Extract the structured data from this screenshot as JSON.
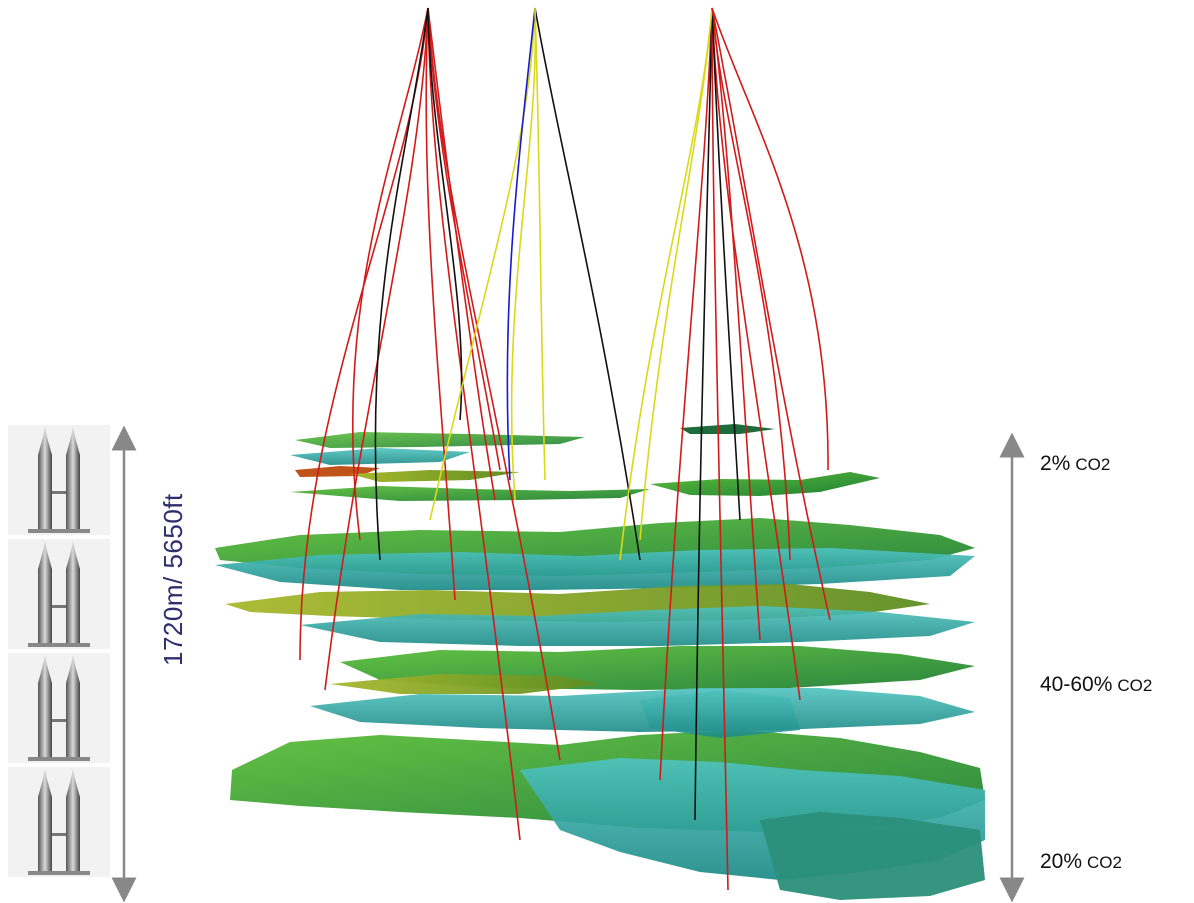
{
  "depth_label": "1720m/ 5650ft",
  "co2_levels": {
    "top": {
      "percent": "2%",
      "gas": "CO2"
    },
    "middle": {
      "percent": "40-60%",
      "gas": "CO2"
    },
    "bottom": {
      "percent": "20%",
      "gas": "CO2"
    }
  },
  "colors": {
    "well_red": "#d21a1a",
    "well_black": "#111111",
    "well_yellow": "#d9d91a",
    "well_blue": "#1a1ad0",
    "horizon_green": "#2f9a3c",
    "horizon_teal": "#2aa3a0",
    "horizon_olive": "#8ca021",
    "horizon_orange": "#c0531a",
    "arrow_gray": "#888888"
  },
  "icons": [
    "twin-towers-icon",
    "twin-towers-icon",
    "twin-towers-icon",
    "twin-towers-icon"
  ]
}
